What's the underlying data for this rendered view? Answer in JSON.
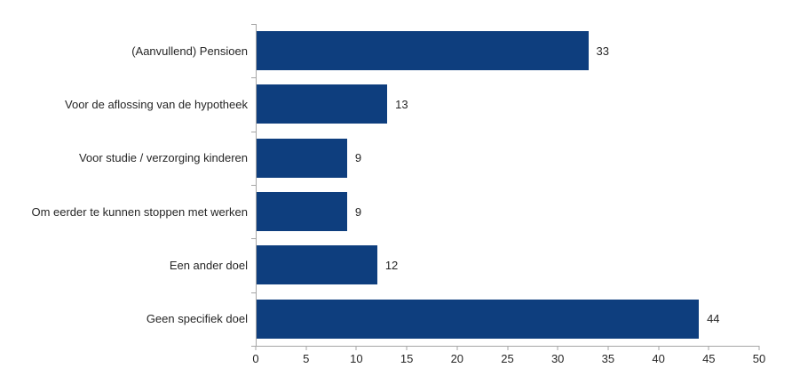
{
  "chart_data": {
    "type": "bar",
    "orientation": "horizontal",
    "title": "",
    "xlabel": "",
    "ylabel": "",
    "categories": [
      "(Aanvullend) Pensioen",
      "Voor de aflossing van de hypotheek",
      "Voor studie / verzorging kinderen",
      "Om eerder te kunnen stoppen met werken",
      "Een ander doel",
      "Geen specifiek doel"
    ],
    "values": [
      33,
      13,
      9,
      9,
      12,
      44
    ],
    "value_labels": [
      "33",
      "13",
      "9",
      "9",
      "12",
      "44"
    ],
    "xlim": [
      0,
      50
    ],
    "x_ticks": [
      0,
      5,
      10,
      15,
      20,
      25,
      30,
      35,
      40,
      45,
      50
    ],
    "grid": false,
    "legend": false,
    "bar_color": "#0e3e7e",
    "axis_color": "#a6a6a6",
    "text_color": "#262626"
  }
}
